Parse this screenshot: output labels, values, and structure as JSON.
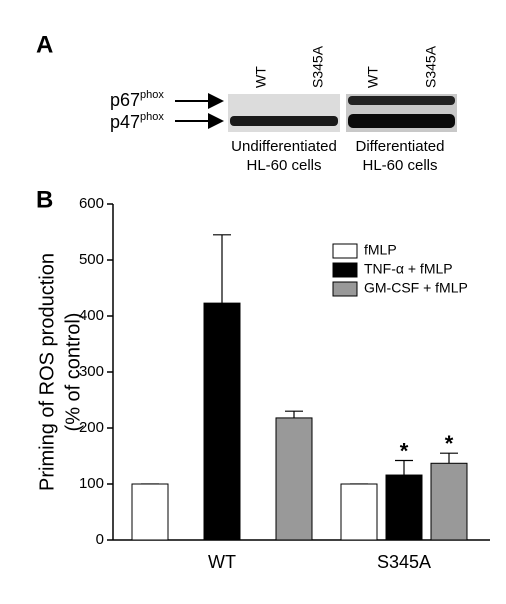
{
  "panel_a": {
    "label": "A",
    "lanes": [
      "WT",
      "S345A",
      "WT",
      "S345A"
    ],
    "bands": [
      {
        "name": "p67",
        "sup": "phox"
      },
      {
        "name": "p47",
        "sup": "phox"
      }
    ],
    "groups": [
      [
        "Undifferentiated",
        "HL-60 cells"
      ],
      [
        "Differentiated",
        "HL-60 cells"
      ]
    ]
  },
  "chart_data": {
    "type": "bar",
    "label": "B",
    "ylabel": [
      "Priming of ROS production",
      "(% of control)"
    ],
    "categories": [
      "WT",
      "S345A"
    ],
    "series": [
      {
        "name": "fMLP",
        "color": "#ffffff",
        "values": [
          100,
          100
        ],
        "errors": [
          0,
          0
        ],
        "markers": [
          null,
          null
        ]
      },
      {
        "name": "TNF-α + fMLP",
        "color": "#000000",
        "values": [
          423,
          116
        ],
        "errors": [
          122,
          26
        ],
        "markers": [
          null,
          "*"
        ]
      },
      {
        "name": "GM-CSF + fMLP",
        "color": "#999999",
        "values": [
          218,
          137
        ],
        "errors": [
          12,
          18
        ],
        "markers": [
          null,
          "*"
        ]
      }
    ],
    "ylim": [
      0,
      600
    ],
    "yticks": [
      0,
      100,
      200,
      300,
      400,
      500,
      600
    ],
    "legend": "upper right"
  }
}
